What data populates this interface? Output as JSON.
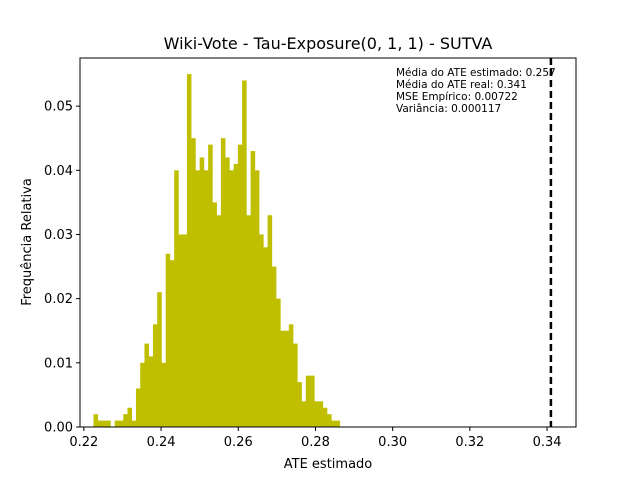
{
  "chart_data": {
    "type": "bar",
    "title": "Wiki-Vote - Tau-Exposure(0, 1, 1) - SUTVA",
    "xlabel": "ATE estimado",
    "ylabel": "Frequência Relativa",
    "xlim": [
      0.219,
      0.3475
    ],
    "ylim": [
      0.0,
      0.0575
    ],
    "xticks": [
      "0.22",
      "0.24",
      "0.26",
      "0.28",
      "0.30",
      "0.32",
      "0.34"
    ],
    "xtick_values": [
      0.22,
      0.24,
      0.26,
      0.28,
      0.3,
      0.32,
      0.34
    ],
    "yticks": [
      "0.00",
      "0.01",
      "0.02",
      "0.03",
      "0.04",
      "0.05"
    ],
    "ytick_values": [
      0.0,
      0.01,
      0.02,
      0.03,
      0.04,
      0.05
    ],
    "bar_color": "#bfbf00",
    "bin_start": 0.2225,
    "bin_width": 0.0011,
    "values": [
      0.002,
      0.001,
      0.001,
      0.001,
      0.0,
      0.001,
      0.001,
      0.002,
      0.003,
      0.001,
      0.006,
      0.01,
      0.013,
      0.011,
      0.016,
      0.021,
      0.01,
      0.027,
      0.026,
      0.04,
      0.03,
      0.03,
      0.055,
      0.045,
      0.04,
      0.042,
      0.04,
      0.044,
      0.035,
      0.033,
      0.045,
      0.042,
      0.04,
      0.041,
      0.044,
      0.054,
      0.033,
      0.043,
      0.04,
      0.03,
      0.028,
      0.033,
      0.025,
      0.02,
      0.015,
      0.015,
      0.016,
      0.013,
      0.007,
      0.004,
      0.008,
      0.008,
      0.004,
      0.004,
      0.003,
      0.002,
      0.001,
      0.001
    ],
    "vline": {
      "x": 0.341,
      "color": "#000000",
      "style": "dashed"
    },
    "annotations": [
      "Média do ATE estimado: 0.257",
      "Média do ATE real: 0.341",
      "MSE Empírico: 0.00722",
      "Variância: 0.000117"
    ],
    "grid": false
  }
}
